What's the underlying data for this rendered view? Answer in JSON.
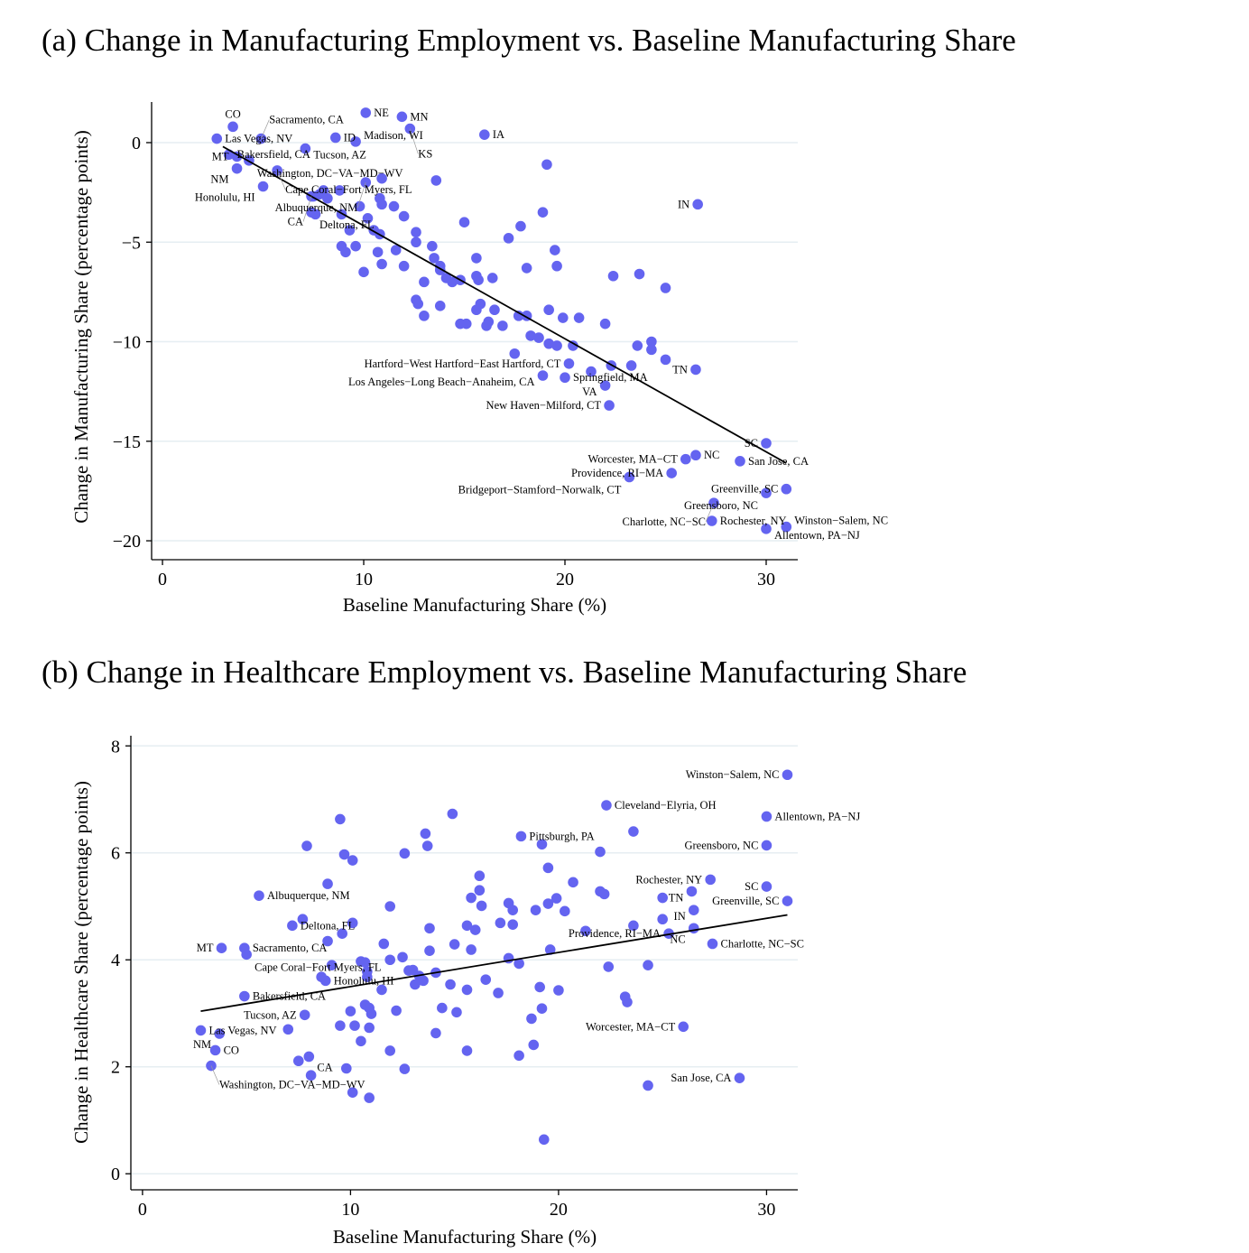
{
  "colors": {
    "point": "#6464f0",
    "grid": "#e6eef2",
    "fit_line": "#000000"
  },
  "chart_data": [
    {
      "type": "scatter",
      "title": "(a) Change in Manufacturing Employment vs. Baseline Manufacturing Share",
      "xlabel": "Baseline Manufacturing Share (%)",
      "ylabel": "Change in Manufacturing Share (percentage points)",
      "xlim": [
        -0.54,
        31.57
      ],
      "ylim": [
        -20.95,
        2.04
      ],
      "xticks": [
        0,
        10,
        20,
        30
      ],
      "yticks": [
        0,
        -5,
        -10,
        -15,
        -20
      ],
      "xtick_labels": [
        "0",
        "10",
        "20",
        "30"
      ],
      "ytick_labels": [
        "0",
        "−5",
        "−10",
        "−15",
        "−20"
      ],
      "grid": true,
      "fit_line": [
        [
          3.0,
          -0.2
        ],
        [
          31.0,
          -16.1
        ]
      ],
      "labeled_points": [
        {
          "name": "CO",
          "x": 3.5,
          "y": 0.8,
          "pos": "t"
        },
        {
          "name": "Las Vegas, NV",
          "x": 2.7,
          "y": 0.2,
          "pos": "r"
        },
        {
          "name": "Sacramento, CA",
          "x": 4.9,
          "y": 0.2,
          "pos": "r"
        },
        {
          "name": "ID",
          "x": 8.6,
          "y": 0.25,
          "pos": "r"
        },
        {
          "name": "Tucson, AZ",
          "x": 7.1,
          "y": -0.3,
          "pos": "r"
        },
        {
          "name": "Madison, WI",
          "x": 9.6,
          "y": 0.05,
          "pos": "r"
        },
        {
          "name": "NE",
          "x": 10.1,
          "y": 1.5,
          "pos": "r"
        },
        {
          "name": "MN",
          "x": 11.9,
          "y": 1.3,
          "pos": "r"
        },
        {
          "name": "KS",
          "x": 12.3,
          "y": 0.7,
          "pos": "r"
        },
        {
          "name": "IA",
          "x": 16.0,
          "y": 0.4,
          "pos": "r"
        },
        {
          "name": "Bakersfield, CA",
          "x": 3.3,
          "y": -0.6,
          "pos": "l"
        },
        {
          "name": "MT",
          "x": 3.7,
          "y": -0.7,
          "pos": "l"
        },
        {
          "name": "Washington, DC−VA−MD−WV",
          "x": 4.3,
          "y": -0.9,
          "pos": "r"
        },
        {
          "name": "NM",
          "x": 3.7,
          "y": -1.3,
          "pos": "lb"
        },
        {
          "name": "Honolulu, HI",
          "x": 5.0,
          "y": -2.2,
          "pos": "lb"
        },
        {
          "name": "Cape Coral−Fort Myers, FL",
          "x": 5.7,
          "y": -1.4,
          "pos": "r"
        },
        {
          "name": "Albuquerque, NM",
          "x": 10.1,
          "y": -2.0,
          "pos": "l"
        },
        {
          "name": "CA",
          "x": 7.4,
          "y": -2.7,
          "pos": "l"
        },
        {
          "name": "Deltona, FL",
          "x": 7.4,
          "y": -3.5,
          "pos": "r"
        },
        {
          "name": "IN",
          "x": 26.6,
          "y": -3.1,
          "pos": "l"
        },
        {
          "name": "TN",
          "x": 26.5,
          "y": -11.4,
          "pos": "l"
        },
        {
          "name": "Hartford−West Hartford−East Hartford, CT",
          "x": 20.2,
          "y": -11.1,
          "pos": "l"
        },
        {
          "name": "Los Angeles−Long Beach−Anaheim, CA",
          "x": 18.9,
          "y": -11.7,
          "pos": "l"
        },
        {
          "name": "Springfield, MA",
          "x": 20.0,
          "y": -11.8,
          "pos": "lb"
        },
        {
          "name": "VA",
          "x": 22.0,
          "y": -12.2,
          "pos": "l"
        },
        {
          "name": "New Haven−Milford, CT",
          "x": 22.2,
          "y": -13.2,
          "pos": "l"
        },
        {
          "name": "SC",
          "x": 30.0,
          "y": -15.1,
          "pos": "l"
        },
        {
          "name": "Worcester, MA−CT",
          "x": 26.0,
          "y": -15.9,
          "pos": "l"
        },
        {
          "name": "NC",
          "x": 26.5,
          "y": -15.7,
          "pos": "r"
        },
        {
          "name": "San Jose, CA",
          "x": 28.7,
          "y": -16.0,
          "pos": "l"
        },
        {
          "name": "Providence, RI−MA",
          "x": 25.3,
          "y": -16.6,
          "pos": "l"
        },
        {
          "name": "Bridgeport−Stamford−Norwalk, CT",
          "x": 23.2,
          "y": -16.8,
          "pos": "l"
        },
        {
          "name": "Greenville, SC",
          "x": 31.0,
          "y": -17.4,
          "pos": "l"
        },
        {
          "name": "Greensboro, NC",
          "x": 30.0,
          "y": -17.6,
          "pos": "l"
        },
        {
          "name": "Charlotte, NC−SC",
          "x": 27.4,
          "y": -18.1,
          "pos": "l"
        },
        {
          "name": "Rochester, NY",
          "x": 27.3,
          "y": -19.0,
          "pos": "l"
        },
        {
          "name": "Allentown, PA−NJ",
          "x": 30.0,
          "y": -19.4,
          "pos": "l"
        },
        {
          "name": "Winston−Salem, NC",
          "x": 31.0,
          "y": -19.3,
          "pos": "lb"
        }
      ],
      "points": [
        [
          19.1,
          -1.1
        ],
        [
          13.6,
          -1.9
        ],
        [
          10.9,
          -1.8
        ],
        [
          8.8,
          -2.4
        ],
        [
          8.0,
          -2.4
        ],
        [
          7.8,
          -2.6
        ],
        [
          7.5,
          -2.7
        ],
        [
          8.2,
          -2.8
        ],
        [
          10.8,
          -2.8
        ],
        [
          9.8,
          -3.2
        ],
        [
          10.9,
          -3.1
        ],
        [
          11.5,
          -3.2
        ],
        [
          18.9,
          -3.5
        ],
        [
          8.9,
          -3.6
        ],
        [
          10.2,
          -3.8
        ],
        [
          12.0,
          -3.7
        ],
        [
          7.6,
          -3.6
        ],
        [
          15.0,
          -4.0
        ],
        [
          17.8,
          -4.2
        ],
        [
          9.3,
          -4.4
        ],
        [
          10.5,
          -4.4
        ],
        [
          10.8,
          -4.6
        ],
        [
          12.6,
          -4.5
        ],
        [
          12.6,
          -5.0
        ],
        [
          13.4,
          -5.2
        ],
        [
          17.2,
          -4.8
        ],
        [
          8.9,
          -5.2
        ],
        [
          9.6,
          -5.2
        ],
        [
          9.1,
          -5.5
        ],
        [
          10.7,
          -5.5
        ],
        [
          11.6,
          -5.4
        ],
        [
          13.5,
          -5.8
        ],
        [
          15.6,
          -5.8
        ],
        [
          19.5,
          -5.4
        ],
        [
          19.6,
          -6.2
        ],
        [
          13.8,
          -6.2
        ],
        [
          13.8,
          -6.4
        ],
        [
          10.9,
          -6.1
        ],
        [
          12.0,
          -6.2
        ],
        [
          18.1,
          -6.3
        ],
        [
          10.0,
          -6.5
        ],
        [
          14.1,
          -6.8
        ],
        [
          14.4,
          -7.0
        ],
        [
          14.8,
          -6.9
        ],
        [
          13.0,
          -7.0
        ],
        [
          15.6,
          -6.7
        ],
        [
          15.7,
          -6.9
        ],
        [
          16.4,
          -6.8
        ],
        [
          22.4,
          -6.7
        ],
        [
          23.7,
          -6.6
        ],
        [
          25.0,
          -7.3
        ],
        [
          12.6,
          -7.9
        ],
        [
          12.7,
          -8.1
        ],
        [
          13.8,
          -8.2
        ],
        [
          13.0,
          -8.7
        ],
        [
          15.8,
          -8.1
        ],
        [
          15.6,
          -8.4
        ],
        [
          16.5,
          -8.4
        ],
        [
          17.7,
          -8.7
        ],
        [
          18.1,
          -8.7
        ],
        [
          19.2,
          -8.4
        ],
        [
          19.9,
          -8.8
        ],
        [
          20.7,
          -8.8
        ],
        [
          14.8,
          -9.1
        ],
        [
          15.1,
          -9.1
        ],
        [
          16.2,
          -9.0
        ],
        [
          16.1,
          -9.2
        ],
        [
          16.9,
          -9.2
        ],
        [
          22.0,
          -9.1
        ],
        [
          18.3,
          -9.7
        ],
        [
          18.7,
          -9.8
        ],
        [
          19.2,
          -10.1
        ],
        [
          19.6,
          -10.2
        ],
        [
          20.4,
          -10.2
        ],
        [
          23.6,
          -10.2
        ],
        [
          24.3,
          -10.0
        ],
        [
          24.3,
          -10.4
        ],
        [
          17.5,
          -10.6
        ],
        [
          22.3,
          -11.2
        ],
        [
          23.3,
          -11.2
        ],
        [
          25.0,
          -10.9
        ],
        [
          21.3,
          -11.5
        ]
      ]
    },
    {
      "type": "scatter",
      "title": "(b) Change in Healthcare Employment vs. Baseline Manufacturing Share",
      "xlabel": "Baseline Manufacturing Share (%)",
      "ylabel": "Change in Healthcare Share (percentage points)",
      "xlim": [
        -0.56,
        31.5
      ],
      "ylim": [
        -0.3,
        8.19
      ],
      "xticks": [
        0,
        10,
        20,
        30
      ],
      "yticks": [
        0,
        2,
        4,
        6,
        8
      ],
      "xtick_labels": [
        "0",
        "10",
        "20",
        "30"
      ],
      "ytick_labels": [
        "0",
        "2",
        "4",
        "6",
        "8"
      ],
      "grid": true,
      "fit_line": [
        [
          2.8,
          3.04
        ],
        [
          31.0,
          4.84
        ]
      ],
      "labeled_points": [
        {
          "name": "Winston−Salem, NC",
          "x": 31.0,
          "y": 7.46,
          "pos": "l"
        },
        {
          "name": "Cleveland−Elyria, OH",
          "x": 22.3,
          "y": 6.89,
          "pos": "r"
        },
        {
          "name": "Allentown, PA−NJ",
          "x": 30.0,
          "y": 6.68,
          "pos": "l"
        },
        {
          "name": "Pittsburgh, PA",
          "x": 18.2,
          "y": 6.31,
          "pos": "r"
        },
        {
          "name": "Greensboro, NC",
          "x": 30.0,
          "y": 6.14,
          "pos": "l"
        },
        {
          "name": "Rochester, NY",
          "x": 27.3,
          "y": 5.5,
          "pos": "l"
        },
        {
          "name": "SC",
          "x": 30.0,
          "y": 5.37,
          "pos": "l"
        },
        {
          "name": "TN",
          "x": 26.4,
          "y": 5.28,
          "pos": "l"
        },
        {
          "name": "Greenville, SC",
          "x": 31.0,
          "y": 5.1,
          "pos": "l"
        },
        {
          "name": "IN",
          "x": 26.5,
          "y": 4.93,
          "pos": "l"
        },
        {
          "name": "Albuquerque, NM",
          "x": 5.6,
          "y": 5.2,
          "pos": "r"
        },
        {
          "name": "Deltona, FL",
          "x": 7.2,
          "y": 4.64,
          "pos": "r"
        },
        {
          "name": "MT",
          "x": 3.8,
          "y": 4.22,
          "pos": "l"
        },
        {
          "name": "Sacramento, CA",
          "x": 4.9,
          "y": 4.22,
          "pos": "r"
        },
        {
          "name": "Cape Coral−Fort Myers, FL",
          "x": 5.0,
          "y": 4.1,
          "pos": "r"
        },
        {
          "name": "Honolulu, HI",
          "x": 8.8,
          "y": 3.61,
          "pos": "lt"
        },
        {
          "name": "Bakersfield, CA",
          "x": 4.9,
          "y": 3.32,
          "pos": "r"
        },
        {
          "name": "Tucson, AZ",
          "x": 7.8,
          "y": 2.97,
          "pos": "l"
        },
        {
          "name": "Las Vegas, NV",
          "x": 2.8,
          "y": 2.68,
          "pos": "r"
        },
        {
          "name": "NM",
          "x": 3.7,
          "y": 2.62,
          "pos": "lb"
        },
        {
          "name": "CO",
          "x": 3.5,
          "y": 2.31,
          "pos": "r"
        },
        {
          "name": "CA",
          "x": 8.0,
          "y": 2.19,
          "pos": "rb"
        },
        {
          "name": "Washington, DC−VA−MD−WV",
          "x": 3.3,
          "y": 2.02,
          "pos": "lb"
        },
        {
          "name": "Worcester, MA−CT",
          "x": 26.0,
          "y": 2.75,
          "pos": "l"
        },
        {
          "name": "San Jose, CA",
          "x": 28.7,
          "y": 1.79,
          "pos": "l"
        },
        {
          "name": "Providence, RI−MA",
          "x": 25.3,
          "y": 4.49,
          "pos": "l"
        },
        {
          "name": "NC",
          "x": 26.5,
          "y": 4.59,
          "pos": "lb"
        },
        {
          "name": "Charlotte, NC−SC",
          "x": 27.4,
          "y": 4.3,
          "pos": "l"
        }
      ],
      "points": [
        [
          9.5,
          6.63
        ],
        [
          7.9,
          6.13
        ],
        [
          9.7,
          5.97
        ],
        [
          10.1,
          5.86
        ],
        [
          12.6,
          5.99
        ],
        [
          14.9,
          6.73
        ],
        [
          13.6,
          6.36
        ],
        [
          13.7,
          6.13
        ],
        [
          19.2,
          6.16
        ],
        [
          22.0,
          6.02
        ],
        [
          23.6,
          6.4
        ],
        [
          19.5,
          5.72
        ],
        [
          20.7,
          5.45
        ],
        [
          16.2,
          5.57
        ],
        [
          16.2,
          5.3
        ],
        [
          15.8,
          5.16
        ],
        [
          16.3,
          5.01
        ],
        [
          8.9,
          5.42
        ],
        [
          11.9,
          5.0
        ],
        [
          17.6,
          5.06
        ],
        [
          17.8,
          4.93
        ],
        [
          19.5,
          5.05
        ],
        [
          19.9,
          5.15
        ],
        [
          18.9,
          4.93
        ],
        [
          20.3,
          4.91
        ],
        [
          22.0,
          5.28
        ],
        [
          22.2,
          5.23
        ],
        [
          25.0,
          5.16
        ],
        [
          25.0,
          4.76
        ],
        [
          23.6,
          4.64
        ],
        [
          21.3,
          4.54
        ],
        [
          7.7,
          4.76
        ],
        [
          9.6,
          4.49
        ],
        [
          10.1,
          4.69
        ],
        [
          8.9,
          4.35
        ],
        [
          13.8,
          4.59
        ],
        [
          15.6,
          4.64
        ],
        [
          16.0,
          4.56
        ],
        [
          17.2,
          4.69
        ],
        [
          17.8,
          4.66
        ],
        [
          11.6,
          4.3
        ],
        [
          13.8,
          4.17
        ],
        [
          15.0,
          4.29
        ],
        [
          15.8,
          4.19
        ],
        [
          19.6,
          4.19
        ],
        [
          9.1,
          3.9
        ],
        [
          10.7,
          3.95
        ],
        [
          11.9,
          4.0
        ],
        [
          12.5,
          4.05
        ],
        [
          17.6,
          4.03
        ],
        [
          18.1,
          3.93
        ],
        [
          22.4,
          3.87
        ],
        [
          24.3,
          3.9
        ],
        [
          10.5,
          3.97
        ],
        [
          10.8,
          3.78
        ],
        [
          10.8,
          3.68
        ],
        [
          8.6,
          3.68
        ],
        [
          12.8,
          3.8
        ],
        [
          13.0,
          3.81
        ],
        [
          13.3,
          3.7
        ],
        [
          13.5,
          3.61
        ],
        [
          13.1,
          3.54
        ],
        [
          14.1,
          3.76
        ],
        [
          11.5,
          3.44
        ],
        [
          14.8,
          3.54
        ],
        [
          15.6,
          3.44
        ],
        [
          16.5,
          3.63
        ],
        [
          17.1,
          3.38
        ],
        [
          19.1,
          3.49
        ],
        [
          20.0,
          3.43
        ],
        [
          23.2,
          3.31
        ],
        [
          23.3,
          3.21
        ],
        [
          10.0,
          3.04
        ],
        [
          10.7,
          3.16
        ],
        [
          10.9,
          3.1
        ],
        [
          11.0,
          2.99
        ],
        [
          12.2,
          3.05
        ],
        [
          14.4,
          3.1
        ],
        [
          15.1,
          3.02
        ],
        [
          19.2,
          3.09
        ],
        [
          18.7,
          2.9
        ],
        [
          7.0,
          2.7
        ],
        [
          9.5,
          2.77
        ],
        [
          10.2,
          2.77
        ],
        [
          10.9,
          2.73
        ],
        [
          14.1,
          2.63
        ],
        [
          10.5,
          2.48
        ],
        [
          18.8,
          2.41
        ],
        [
          11.9,
          2.3
        ],
        [
          15.6,
          2.3
        ],
        [
          18.1,
          2.21
        ],
        [
          9.8,
          1.97
        ],
        [
          12.6,
          1.96
        ],
        [
          8.1,
          1.84
        ],
        [
          7.5,
          2.11
        ],
        [
          10.1,
          1.52
        ],
        [
          10.9,
          1.42
        ],
        [
          24.3,
          1.65
        ],
        [
          19.3,
          0.64
        ]
      ]
    }
  ]
}
